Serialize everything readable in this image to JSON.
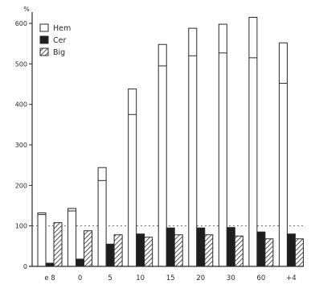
{
  "chart_data": {
    "type": "bar",
    "title": "",
    "xlabel": "",
    "ylabel": "%",
    "ylim": [
      0,
      620
    ],
    "yticks": [
      0,
      100,
      200,
      300,
      400,
      500,
      600
    ],
    "reference_line": 100,
    "categories": [
      "e 8",
      "0",
      "5",
      "10",
      "15",
      "20",
      "30",
      "60",
      "+4"
    ],
    "series": [
      {
        "name": "Hem",
        "values": [
          132,
          143,
          244,
          438,
          548,
          588,
          598,
          615,
          552
        ],
        "style": "open"
      },
      {
        "name": "Cer",
        "values": [
          8,
          18,
          55,
          80,
          95,
          95,
          96,
          85,
          80
        ],
        "style": "solid"
      },
      {
        "name": "Big",
        "values": [
          108,
          88,
          78,
          72,
          78,
          78,
          75,
          68,
          68
        ],
        "style": "hatched"
      }
    ],
    "hem_inner_line": [
      128,
      137,
      212,
      375,
      495,
      520,
      527,
      515,
      452
    ],
    "legend_position": "top-left",
    "grid": false,
    "colors": {
      "outline": "#2a2a2a",
      "fill_open": "#ffffff",
      "fill_solid": "#1e1e1e",
      "hatch": "#2a2a2a",
      "reference": "#555555"
    }
  }
}
